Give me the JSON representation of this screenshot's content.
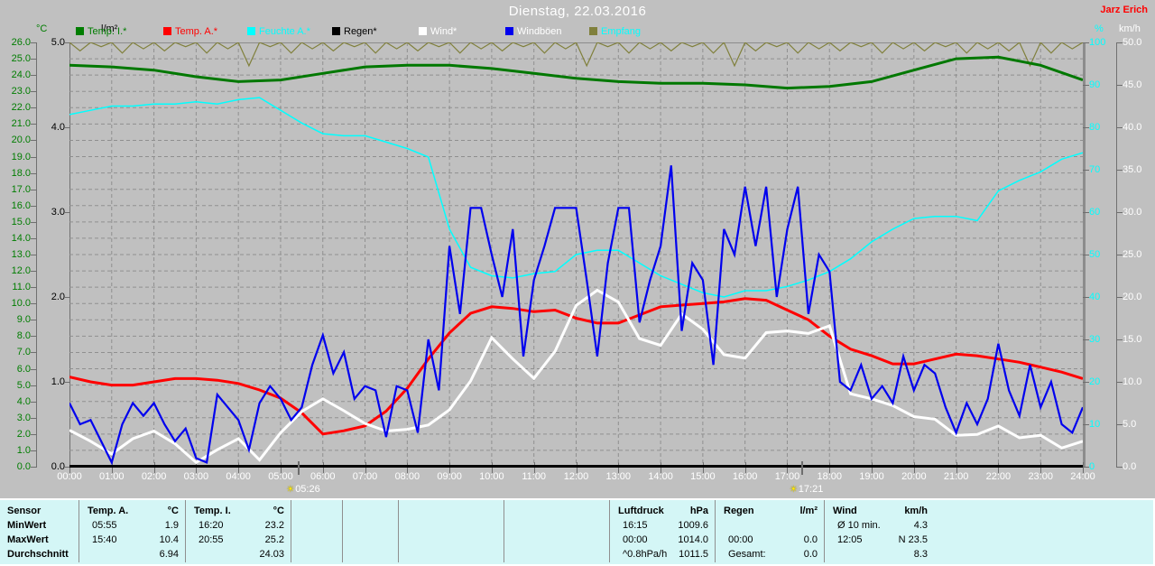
{
  "header": {
    "title": "Dienstag, 22.03.2016",
    "station": "Jarz Erich"
  },
  "chart_data": {
    "type": "line",
    "title": "Dienstag, 22.03.2016",
    "grid": true,
    "x_axis": {
      "unit": "h",
      "range": [
        0,
        24
      ],
      "tick_labels": [
        "00:00",
        "01:00",
        "02:00",
        "03:00",
        "04:00",
        "05:00",
        "06:00",
        "07:00",
        "08:00",
        "09:00",
        "10:00",
        "11:00",
        "12:00",
        "13:00",
        "14:00",
        "15:00",
        "16:00",
        "17:00",
        "18:00",
        "19:00",
        "20:00",
        "21:00",
        "22:00",
        "23:00",
        "24:00"
      ]
    },
    "y_axes": {
      "temp_c": {
        "unit": "°C",
        "range": [
          0,
          26
        ],
        "color": "#007d00",
        "tick_labels": [
          "26.0",
          "25.0",
          "24.0",
          "23.0",
          "22.0",
          "21.0",
          "20.0",
          "19.0",
          "18.0",
          "17.0",
          "16.0",
          "15.0",
          "14.0",
          "13.0",
          "12.0",
          "11.0",
          "10.0",
          "9.0",
          "8.0",
          "7.0",
          "6.0",
          "5.0",
          "4.0",
          "3.0",
          "2.0",
          "1.0",
          "0.0"
        ]
      },
      "rain_lm2": {
        "unit": "l/m²",
        "range": [
          0,
          5
        ],
        "color": "#000000",
        "tick_labels": [
          "5.0",
          "4.0",
          "3.0",
          "2.0",
          "1.0",
          "0.0"
        ]
      },
      "hum_pct": {
        "unit": "%",
        "range": [
          0,
          100
        ],
        "color": "#00ffff",
        "tick_labels": [
          "100",
          "90",
          "80",
          "70",
          "60",
          "50",
          "40",
          "30",
          "20",
          "10",
          "0"
        ]
      },
      "wind_kmh": {
        "unit": "km/h",
        "range": [
          0,
          50
        ],
        "color": "#ffffff",
        "tick_labels": [
          "50.0",
          "45.0",
          "40.0",
          "35.0",
          "30.0",
          "25.0",
          "20.0",
          "15.0",
          "10.0",
          "5.0",
          "0.0"
        ]
      }
    },
    "legend": [
      {
        "label": "Temp. I.*",
        "color": "#007d00",
        "text_color": "#007d00"
      },
      {
        "label": "Temp. A.*",
        "color": "#ff0000",
        "text_color": "#ff0000"
      },
      {
        "label": "Feuchte A.*",
        "color": "#00ffff",
        "text_color": "#00ffff"
      },
      {
        "label": "Regen*",
        "color": "#000000",
        "text_color": "#000000"
      },
      {
        "label": "Wind*",
        "color": "#ffffff",
        "text_color": "#ffffff"
      },
      {
        "label": "Windböen",
        "color": "#0000ee",
        "text_color": "#ffffff"
      },
      {
        "label": "Empfang",
        "color": "#80803c",
        "text_color": "#00ffff"
      }
    ],
    "sun_markers": [
      {
        "type": "sunrise",
        "label": "05:26",
        "hour": 5.433
      },
      {
        "type": "sunset",
        "label": "17:21",
        "hour": 17.35
      }
    ],
    "series": [
      {
        "name": "empfang",
        "axis": "hum_pct",
        "color": "#80803c",
        "interval_h": 0.25,
        "values": [
          100,
          98,
          100,
          99,
          100,
          97.5,
          100,
          98.5,
          100,
          98,
          100,
          99,
          100,
          97.5,
          100,
          98.5,
          100,
          94.5,
          100,
          99,
          100,
          97.5,
          100,
          98.5,
          100,
          98,
          100,
          99,
          100,
          97.5,
          100,
          98.5,
          100,
          98,
          100,
          99,
          100,
          97.5,
          100,
          98.5,
          100,
          98,
          100,
          99,
          100,
          97.5,
          100,
          98.5,
          100,
          94.5,
          100,
          99,
          100,
          97.5,
          100,
          98.5,
          100,
          98,
          100,
          99,
          100,
          97.5,
          100,
          94.5,
          100,
          98,
          100,
          99,
          100,
          97.5,
          100,
          98.5,
          100,
          98,
          100,
          99,
          100,
          97.5,
          100,
          98.5,
          100,
          98,
          100,
          99,
          100,
          97.5,
          100,
          98.5,
          100,
          98,
          100,
          94.5,
          100,
          97.5,
          100,
          98.5,
          100
        ]
      },
      {
        "name": "feuchte_a",
        "axis": "hum_pct",
        "color": "#00ffff",
        "interval_h": 0.5,
        "values": [
          83,
          84,
          85,
          85,
          85.5,
          85.5,
          86,
          85.5,
          86.5,
          87,
          84,
          81,
          78.5,
          78,
          78,
          76.5,
          75,
          73,
          56,
          47,
          45,
          44.5,
          45.5,
          46,
          50,
          51,
          51,
          48,
          45,
          43,
          41,
          40,
          41.5,
          41.5,
          42.5,
          44,
          46,
          49,
          53,
          56,
          58.5,
          59,
          59,
          58,
          65,
          67.5,
          69.5,
          72.5,
          74
        ]
      },
      {
        "name": "temp_i",
        "axis": "temp_c",
        "color": "#007800",
        "interval_h": 1,
        "values": [
          24.6,
          24.5,
          24.3,
          23.9,
          23.6,
          23.7,
          24.1,
          24.5,
          24.6,
          24.6,
          24.4,
          24.1,
          23.8,
          23.6,
          23.5,
          23.5,
          23.4,
          23.2,
          23.3,
          23.6,
          24.3,
          25.0,
          25.1,
          24.6,
          23.7
        ]
      },
      {
        "name": "regen",
        "axis": "rain_lm2",
        "color": "#000000",
        "interval_h": 1,
        "values": [
          0,
          0,
          0,
          0,
          0,
          0,
          0,
          0,
          0,
          0,
          0,
          0,
          0,
          0,
          0,
          0,
          0,
          0,
          0,
          0,
          0,
          0,
          0,
          0,
          0
        ]
      },
      {
        "name": "temp_a",
        "axis": "temp_c",
        "color": "#ff0000",
        "interval_h": 0.5,
        "values": [
          5.5,
          5.2,
          5.0,
          5.0,
          5.2,
          5.4,
          5.4,
          5.3,
          5.1,
          4.7,
          4.2,
          3.3,
          2.0,
          2.2,
          2.5,
          3.4,
          4.8,
          6.6,
          8.2,
          9.4,
          9.8,
          9.7,
          9.5,
          9.6,
          9.1,
          8.8,
          8.8,
          9.3,
          9.8,
          9.9,
          10.0,
          10.1,
          10.3,
          10.2,
          9.6,
          9.0,
          8.0,
          7.2,
          6.8,
          6.3,
          6.3,
          6.6,
          6.9,
          6.8,
          6.6,
          6.4,
          6.1,
          5.8,
          5.4
        ]
      },
      {
        "name": "wind",
        "axis": "wind_kmh",
        "color": "#ffffff",
        "interval_h": 0.5,
        "values": [
          4.3,
          3.0,
          1.5,
          3.3,
          4.2,
          2.7,
          0.5,
          2.0,
          3.3,
          0.8,
          4.0,
          6.5,
          8.0,
          6.6,
          5.1,
          4.2,
          4.4,
          4.9,
          6.7,
          10.1,
          15.2,
          12.7,
          10.4,
          13.6,
          19.0,
          20.8,
          19.4,
          15.1,
          14.3,
          18.0,
          16.2,
          13.2,
          12.8,
          15.8,
          16.0,
          15.7,
          16.6,
          8.6,
          8.0,
          7.2,
          5.9,
          5.6,
          3.7,
          3.8,
          4.8,
          3.4,
          3.7,
          2.2,
          3.0
        ]
      },
      {
        "name": "windboeen",
        "axis": "wind_kmh",
        "color": "#0000ee",
        "interval_h": 0.25,
        "values": [
          7.5,
          5,
          5.5,
          3,
          0.5,
          5,
          7.5,
          6,
          7.5,
          5,
          3,
          4.5,
          1,
          0.5,
          8.5,
          7,
          5.5,
          2,
          7.5,
          9.5,
          8,
          5.5,
          7,
          12,
          15.5,
          11,
          13.5,
          8,
          9.5,
          9,
          3.5,
          9.5,
          9,
          4,
          15,
          9,
          26,
          18,
          30.5,
          30.5,
          25,
          20,
          28,
          13,
          22,
          26,
          30.5,
          30.5,
          30.5,
          22,
          13,
          24,
          30.5,
          30.5,
          17,
          22,
          26,
          35.5,
          16,
          24,
          22,
          12,
          28,
          25,
          33,
          26,
          33,
          20,
          28,
          33,
          18,
          25,
          23,
          10,
          9,
          12,
          8,
          9.5,
          7.5,
          13,
          9,
          12,
          11,
          7,
          4,
          7.5,
          5,
          8,
          14.5,
          9,
          6,
          12,
          7,
          10,
          5,
          4,
          7
        ]
      }
    ]
  },
  "table": {
    "row_headers": [
      "Sensor",
      "MinWert",
      "MaxWert",
      "Durchschnitt"
    ],
    "columns": [
      {
        "name": "Temp. A.",
        "unit": "°C",
        "rows": [
          [
            "05:55",
            "1.9"
          ],
          [
            "15:40",
            "10.4"
          ],
          [
            "",
            "6.94"
          ]
        ]
      },
      {
        "name": "Temp. I.",
        "unit": "°C",
        "rows": [
          [
            "16:20",
            "23.2"
          ],
          [
            "20:55",
            "25.2"
          ],
          [
            "",
            "24.03"
          ]
        ]
      },
      {
        "name": "",
        "unit": "",
        "rows": [
          [
            "",
            ""
          ],
          [
            "",
            ""
          ],
          [
            "",
            ""
          ]
        ]
      },
      {
        "name": "",
        "unit": "",
        "rows": [
          [
            "",
            ""
          ],
          [
            "",
            ""
          ],
          [
            "",
            ""
          ]
        ]
      },
      {
        "name": "",
        "unit": "",
        "rows": [
          [
            "",
            ""
          ],
          [
            "",
            ""
          ],
          [
            "",
            ""
          ]
        ]
      },
      {
        "name": "",
        "unit": "",
        "rows": [
          [
            "",
            ""
          ],
          [
            "",
            ""
          ],
          [
            "",
            ""
          ]
        ]
      },
      {
        "name": "Luftdruck",
        "unit": "hPa",
        "rows": [
          [
            "16:15",
            "1009.6"
          ],
          [
            "00:00",
            "1014.0"
          ],
          [
            "^0.8hPa/h",
            "1011.5"
          ]
        ]
      },
      {
        "name": "Regen",
        "unit": "l/m²",
        "rows": [
          [
            "",
            ""
          ],
          [
            "00:00",
            "0.0"
          ],
          [
            "Gesamt:",
            "0.0"
          ]
        ]
      },
      {
        "name": "Wind",
        "unit": "km/h",
        "rows": [
          [
            "Ø 10 min.",
            "4.3"
          ],
          [
            "12:05",
            "N 23.5"
          ],
          [
            "",
            "8.3"
          ]
        ]
      }
    ]
  }
}
